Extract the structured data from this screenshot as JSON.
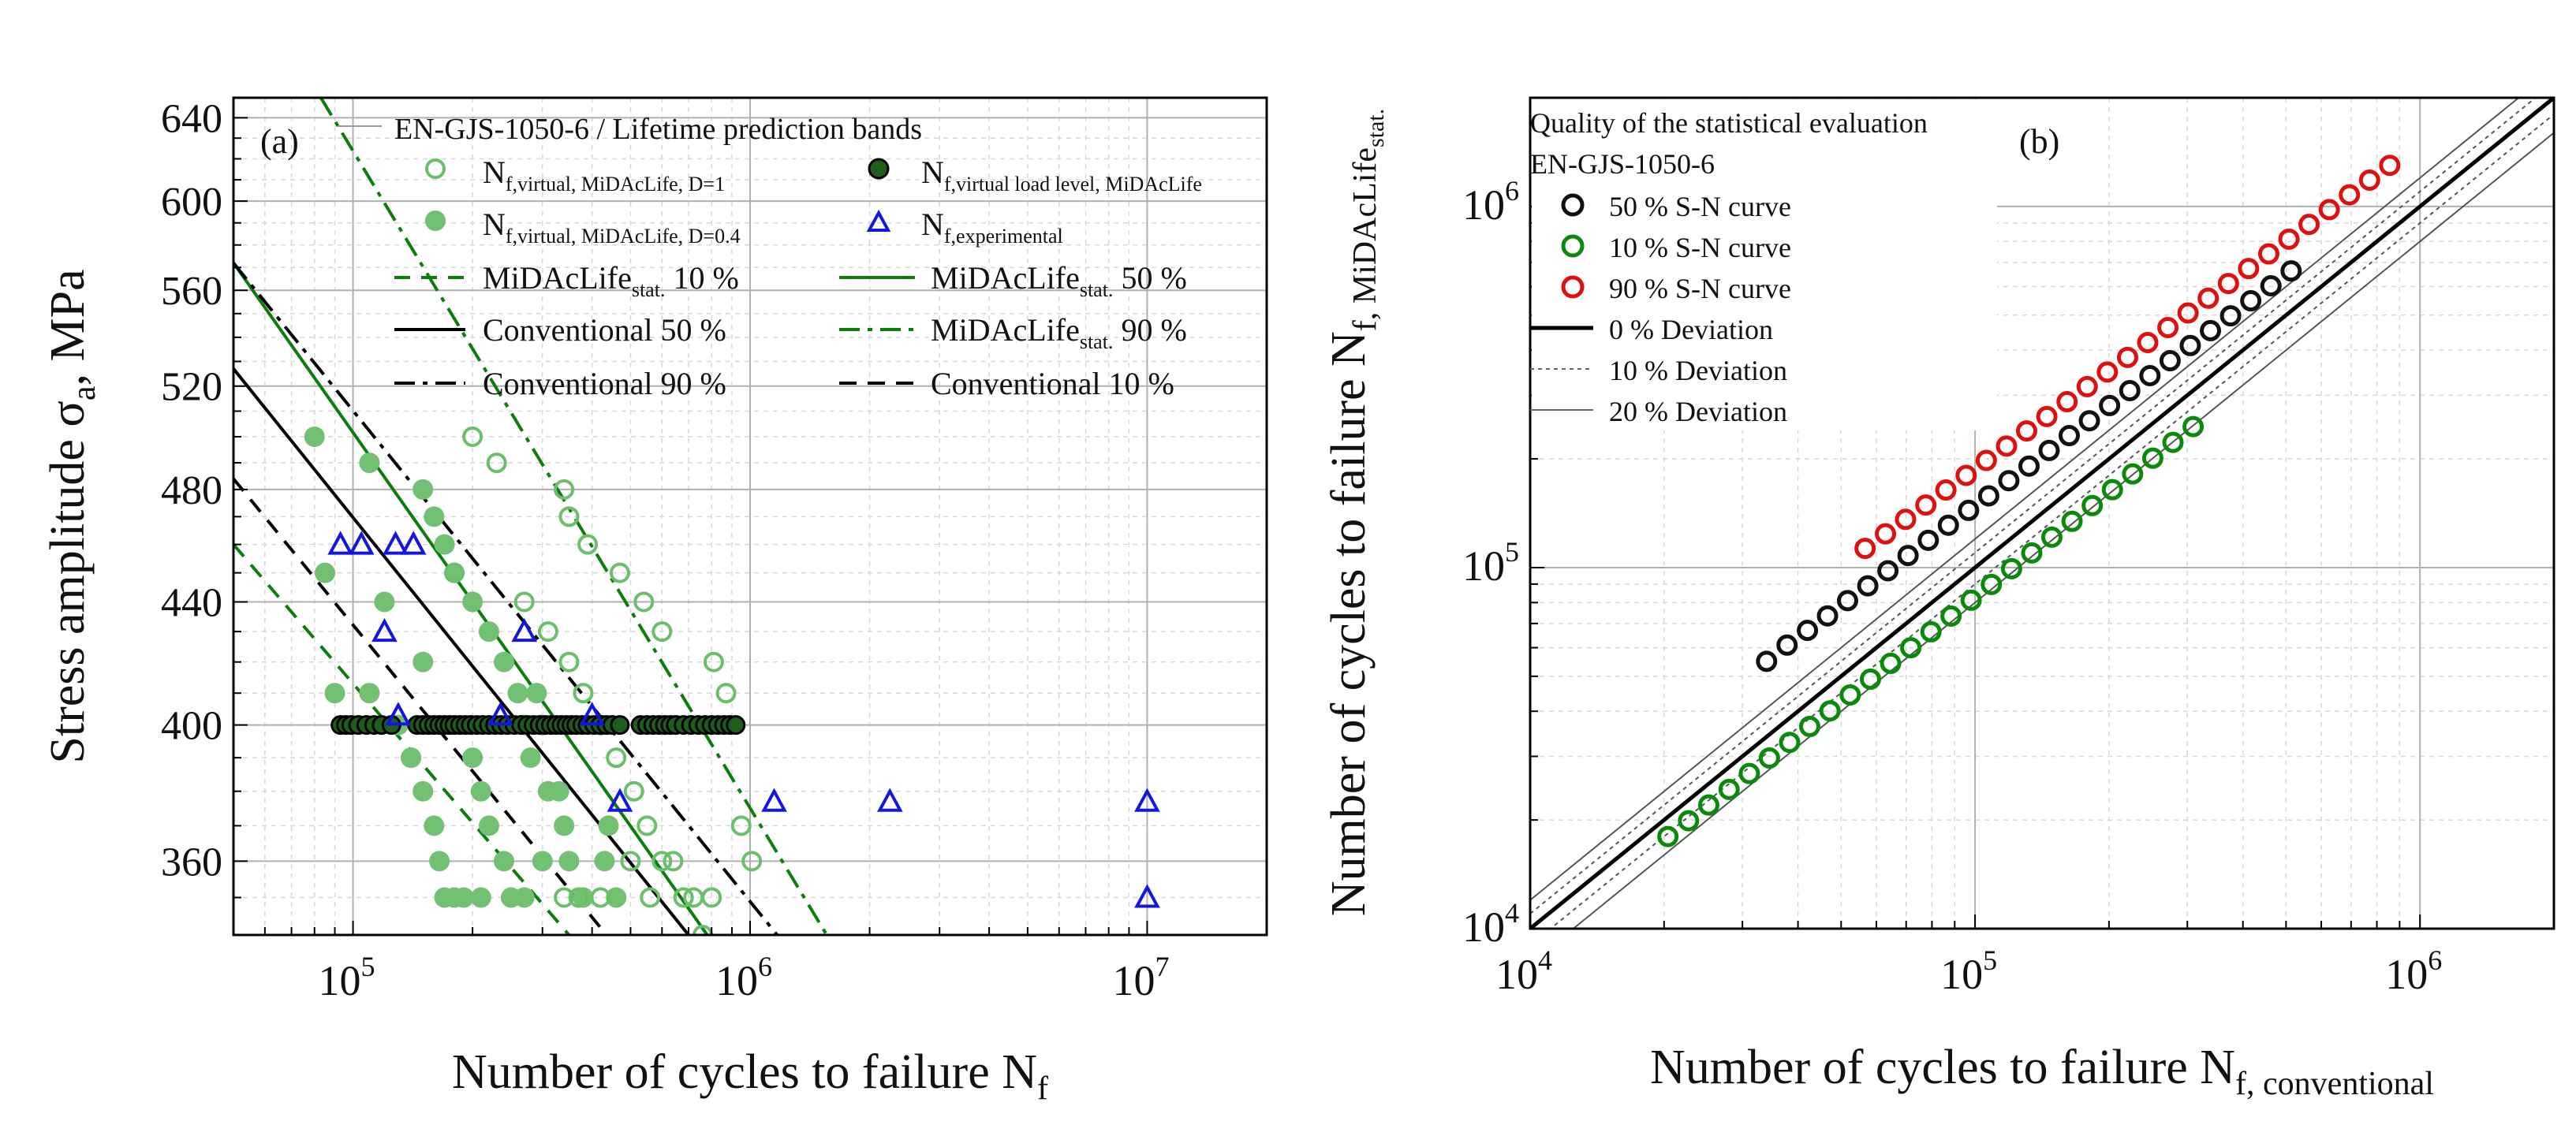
{
  "chart_data": [
    {
      "panel_label": "(a)",
      "type": "scatter",
      "xscale": "log",
      "yscale": "log",
      "xlim": [
        50000,
        20000000
      ],
      "ylim": [
        340,
        650
      ],
      "xlabel": "Number of cycles to failure N",
      "xlabel_sub": "f",
      "ylabel": "Stress amplitude σ",
      "ylabel_sub": "a",
      "ylabel_tail": ", MPa",
      "x_ticks": [
        {
          "value": 100000,
          "base": "10",
          "exp": "5"
        },
        {
          "value": 1000000,
          "base": "10",
          "exp": "6"
        },
        {
          "value": 10000000,
          "base": "10",
          "exp": "7"
        }
      ],
      "y_ticks": [
        {
          "value": 360,
          "label": "360"
        },
        {
          "value": 400,
          "label": "400"
        },
        {
          "value": 440,
          "label": "440"
        },
        {
          "value": 480,
          "label": "480"
        },
        {
          "value": 520,
          "label": "520"
        },
        {
          "value": 560,
          "label": "560"
        },
        {
          "value": 600,
          "label": "600"
        },
        {
          "value": 640,
          "label": "640"
        }
      ],
      "legend_title": "EN-GJS-1050-6 / Lifetime prediction bands",
      "legend": [
        {
          "id": "open",
          "main": "N",
          "sub": "f,virtual, MiDAcLife, D=1",
          "supsub": ""
        },
        {
          "id": "dark",
          "main": "N",
          "sub": "f,virtual load level, MiDAcLife",
          "supsub": ""
        },
        {
          "id": "filled",
          "main": "N",
          "sub": "f,virtual, MiDAcLife, D=0.4",
          "supsub": ""
        },
        {
          "id": "exp",
          "main": "N",
          "sub": "f,experimental",
          "supsub": ""
        },
        {
          "id": "mid10",
          "main": "MiDAcLife",
          "sub": "stat.",
          "tail": " 10 %"
        },
        {
          "id": "mid50",
          "main": "MiDAcLife",
          "sub": "stat.",
          "tail": " 50 %"
        },
        {
          "id": "conv50",
          "main": "Conventional 50 %",
          "sub": "",
          "tail": ""
        },
        {
          "id": "mid90",
          "main": "MiDAcLife",
          "sub": "stat.",
          "tail": " 90 %"
        },
        {
          "id": "conv90",
          "main": "Conventional 90 %",
          "sub": "",
          "tail": ""
        },
        {
          "id": "conv10",
          "main": "Conventional 10 %",
          "sub": "",
          "tail": ""
        }
      ],
      "colors": {
        "green": "#0b7d0b",
        "light_green": "#6abf6a",
        "filled_green": "#72c072",
        "dark_dot": "#1d5e1d",
        "blue": "#1515e0",
        "black": "#000000"
      },
      "series": [
        {
          "name": "MiDAcLife stat. 10 %",
          "kind": "line",
          "style": "dash",
          "color": "#0b7d0b",
          "x": [
            50000,
            350000
          ],
          "y": [
            460,
            340
          ]
        },
        {
          "name": "MiDAcLife stat. 50 %",
          "kind": "line",
          "style": "solid",
          "color": "#0b7d0b",
          "x": [
            50000,
            780000
          ],
          "y": [
            572,
            340
          ]
        },
        {
          "name": "MiDAcLife stat. 90 %",
          "kind": "line",
          "style": "dashdot",
          "color": "#0b7d0b",
          "x": [
            83000,
            1560000
          ],
          "y": [
            650,
            340
          ]
        },
        {
          "name": "Conventional 50 %",
          "kind": "line",
          "style": "solid",
          "color": "#000000",
          "x": [
            50000,
            700000
          ],
          "y": [
            527,
            340
          ]
        },
        {
          "name": "Conventional 90 %",
          "kind": "line",
          "style": "dashdot",
          "color": "#000000",
          "x": [
            50000,
            1170000
          ],
          "y": [
            572,
            340
          ]
        },
        {
          "name": "Conventional 10 %",
          "kind": "line",
          "style": "dash",
          "color": "#000000",
          "x": [
            50000,
            435000
          ],
          "y": [
            484,
            340
          ]
        },
        {
          "name": "N f,virtual, MiDAcLife, D=1",
          "kind": "open",
          "color": "#6abf6a",
          "x": [
            200000,
            230000,
            340000,
            350000,
            390000,
            470000,
            540000,
            600000,
            180000,
            270000,
            310000,
            350000,
            380000,
            420000,
            460000,
            510000,
            550000,
            600000,
            680000,
            760000,
            810000,
            870000,
            950000,
            1010000,
            340000,
            370000,
            420000,
            500000,
            560000,
            640000,
            720000,
            800000
          ],
          "y": [
            500,
            490,
            480,
            470,
            460,
            450,
            440,
            430,
            450,
            440,
            430,
            420,
            410,
            400,
            390,
            380,
            370,
            360,
            350,
            340,
            420,
            410,
            370,
            360,
            350,
            350,
            350,
            360,
            350,
            360,
            350,
            350
          ]
        },
        {
          "name": "N f,virtual, MiDAcLife, D=0.4",
          "kind": "filled",
          "color": "#72c072",
          "x": [
            80000,
            85000,
            90000,
            110000,
            120000,
            130000,
            140000,
            150000,
            160000,
            170000,
            180000,
            200000,
            220000,
            240000,
            260000,
            270000,
            280000,
            310000,
            340000,
            350000,
            380000,
            430000,
            440000,
            460000,
            140000,
            150000,
            160000,
            165000,
            170000,
            180000,
            190000,
            200000,
            210000,
            220000,
            240000,
            250000,
            270000,
            290000,
            300000,
            150000,
            110000,
            210000,
            300000,
            330000,
            420000
          ],
          "y": [
            500,
            450,
            410,
            490,
            440,
            400,
            390,
            480,
            470,
            460,
            450,
            440,
            430,
            420,
            410,
            400,
            390,
            380,
            370,
            360,
            350,
            360,
            370,
            350,
            390,
            380,
            370,
            360,
            350,
            350,
            350,
            390,
            380,
            370,
            360,
            350,
            350,
            410,
            400,
            420,
            410,
            350,
            360,
            380,
            400
          ]
        },
        {
          "name": "N f,virtual load level, MiDAcLife",
          "kind": "dark",
          "color": "#1d5e1d",
          "x": [
            93000,
            96000,
            99000,
            103000,
            108000,
            113000,
            118000,
            125000,
            145000,
            150000,
            155000,
            160000,
            165000,
            170000,
            175000,
            180000,
            186000,
            192000,
            198000,
            205000,
            212000,
            220000,
            228000,
            236000,
            245000,
            255000,
            265000,
            275000,
            285000,
            295000,
            305000,
            315000,
            325000,
            335000,
            345000,
            355000,
            365000,
            378000,
            390000,
            405000,
            420000,
            435000,
            450000,
            470000,
            530000,
            550000,
            570000,
            590000,
            610000,
            630000,
            650000,
            680000,
            710000,
            740000,
            770000,
            800000,
            830000,
            860000,
            890000,
            920000
          ],
          "y": [
            400,
            400,
            400,
            400,
            400,
            400,
            400,
            400,
            400,
            400,
            400,
            400,
            400,
            400,
            400,
            400,
            400,
            400,
            400,
            400,
            400,
            400,
            400,
            400,
            400,
            400,
            400,
            400,
            400,
            400,
            400,
            400,
            400,
            400,
            400,
            400,
            400,
            400,
            400,
            400,
            400,
            400,
            400,
            400,
            400,
            400,
            400,
            400,
            400,
            400,
            400,
            400,
            400,
            400,
            400,
            400,
            400,
            400,
            400,
            400
          ]
        },
        {
          "name": "N f,experimental",
          "kind": "triangle",
          "color": "#1515e0",
          "x": [
            93000,
            105000,
            128000,
            142000,
            120000,
            270000,
            130000,
            235000,
            400000,
            470000,
            1150000,
            2250000,
            10000000,
            10000000
          ],
          "y": [
            460,
            460,
            460,
            460,
            430,
            430,
            403,
            403,
            403,
            377,
            377,
            377,
            377,
            350
          ]
        }
      ]
    },
    {
      "panel_label": "(b)",
      "type": "scatter",
      "xscale": "log",
      "yscale": "log",
      "xlim": [
        10000,
        2000000
      ],
      "ylim": [
        10000,
        2000000
      ],
      "xlabel": "Number of cycles to failure N",
      "xlabel_sub": "f, conventional",
      "ylabel": "Number of cycles to failure N",
      "ylabel_sub": "f, MiDAcLife",
      "ylabel_subsub": "stat.",
      "x_ticks": [
        {
          "value": 10000,
          "base": "10",
          "exp": "4"
        },
        {
          "value": 100000,
          "base": "10",
          "exp": "5"
        },
        {
          "value": 1000000,
          "base": "10",
          "exp": "6"
        }
      ],
      "y_ticks": [
        {
          "value": 10000,
          "base": "10",
          "exp": "4"
        },
        {
          "value": 100000,
          "base": "10",
          "exp": "5"
        },
        {
          "value": 1000000,
          "base": "10",
          "exp": "6"
        }
      ],
      "legend_title": "Quality of the statistical evaluation",
      "legend_subtitle": "EN-GJS-1050-6",
      "legend": [
        {
          "id": "sn50",
          "label": "50 % S-N curve"
        },
        {
          "id": "sn10",
          "label": "10 % S-N curve"
        },
        {
          "id": "sn90",
          "label": "90 % S-N curve"
        },
        {
          "id": "dev0",
          "label": "0 % Deviation"
        },
        {
          "id": "dev10",
          "label": "10 % Deviation"
        },
        {
          "id": "dev20",
          "label": "20 % Deviation"
        }
      ],
      "series": [
        {
          "name": "0 % Deviation",
          "kind": "line",
          "style": "solid-thick",
          "color": "#000000",
          "factor": 1.0
        },
        {
          "name": "10 % Deviation",
          "kind": "line",
          "style": "dotted",
          "color": "#555555",
          "factors": [
            1.1,
            0.9
          ]
        },
        {
          "name": "20 % Deviation",
          "kind": "line",
          "style": "solid-thin",
          "color": "#555555",
          "factors": [
            1.2,
            0.8
          ]
        },
        {
          "name": "50 % S-N curve",
          "kind": "open-circle",
          "color": "#111111",
          "x": [
            34000,
            37800,
            42000,
            46600,
            51700,
            57400,
            63700,
            70700,
            78500,
            87100,
            96700,
            107300,
            119100,
            132200,
            146700,
            162800,
            180700,
            200600,
            222700,
            247200,
            274400,
            304600,
            338100,
            375300,
            416600,
            462400,
            513300
          ],
          "y": [
            55000,
            61000,
            67000,
            73500,
            81000,
            89000,
            98000,
            108000,
            119000,
            131000,
            144000,
            158000,
            174000,
            191000,
            211000,
            232000,
            255000,
            281000,
            309000,
            340000,
            374000,
            412000,
            453000,
            498000,
            548000,
            603000,
            663000
          ]
        },
        {
          "name": "10 % S-N curve",
          "kind": "open-circle",
          "color": "#0a8a0a",
          "x": [
            20400,
            22700,
            25200,
            28000,
            31100,
            34500,
            38300,
            42500,
            47200,
            52400,
            58200,
            64600,
            71700,
            79600,
            88300,
            98000,
            108800,
            120800,
            134100,
            148800,
            165200,
            183400,
            203600,
            226000,
            250900,
            278500,
            309100
          ],
          "y": [
            18000,
            19900,
            22000,
            24300,
            26900,
            29700,
            32800,
            36300,
            40100,
            44400,
            49100,
            54300,
            60000,
            66400,
            73400,
            81200,
            89800,
            99300,
            109800,
            121400,
            134300,
            148500,
            164300,
            181700,
            200900,
            222200,
            245700
          ]
        },
        {
          "name": "90 % S-N curve",
          "kind": "open-circle",
          "color": "#e01010",
          "x": [
            56600,
            62900,
            69800,
            77500,
            86000,
            95500,
            106000,
            117700,
            130600,
            145000,
            161000,
            178700,
            198300,
            220200,
            244400,
            271300,
            301100,
            334300,
            371100,
            411900,
            457200,
            507500,
            563300,
            625300,
            694100,
            770400,
            855200
          ],
          "y": [
            113000,
            124000,
            136000,
            149000,
            164000,
            180000,
            198000,
            217000,
            239000,
            262000,
            288000,
            317000,
            348000,
            382000,
            420000,
            462000,
            507000,
            557000,
            612000,
            673000,
            739000,
            812000,
            892000,
            980000,
            1077000,
            1183000,
            1300000
          ]
        }
      ]
    }
  ]
}
